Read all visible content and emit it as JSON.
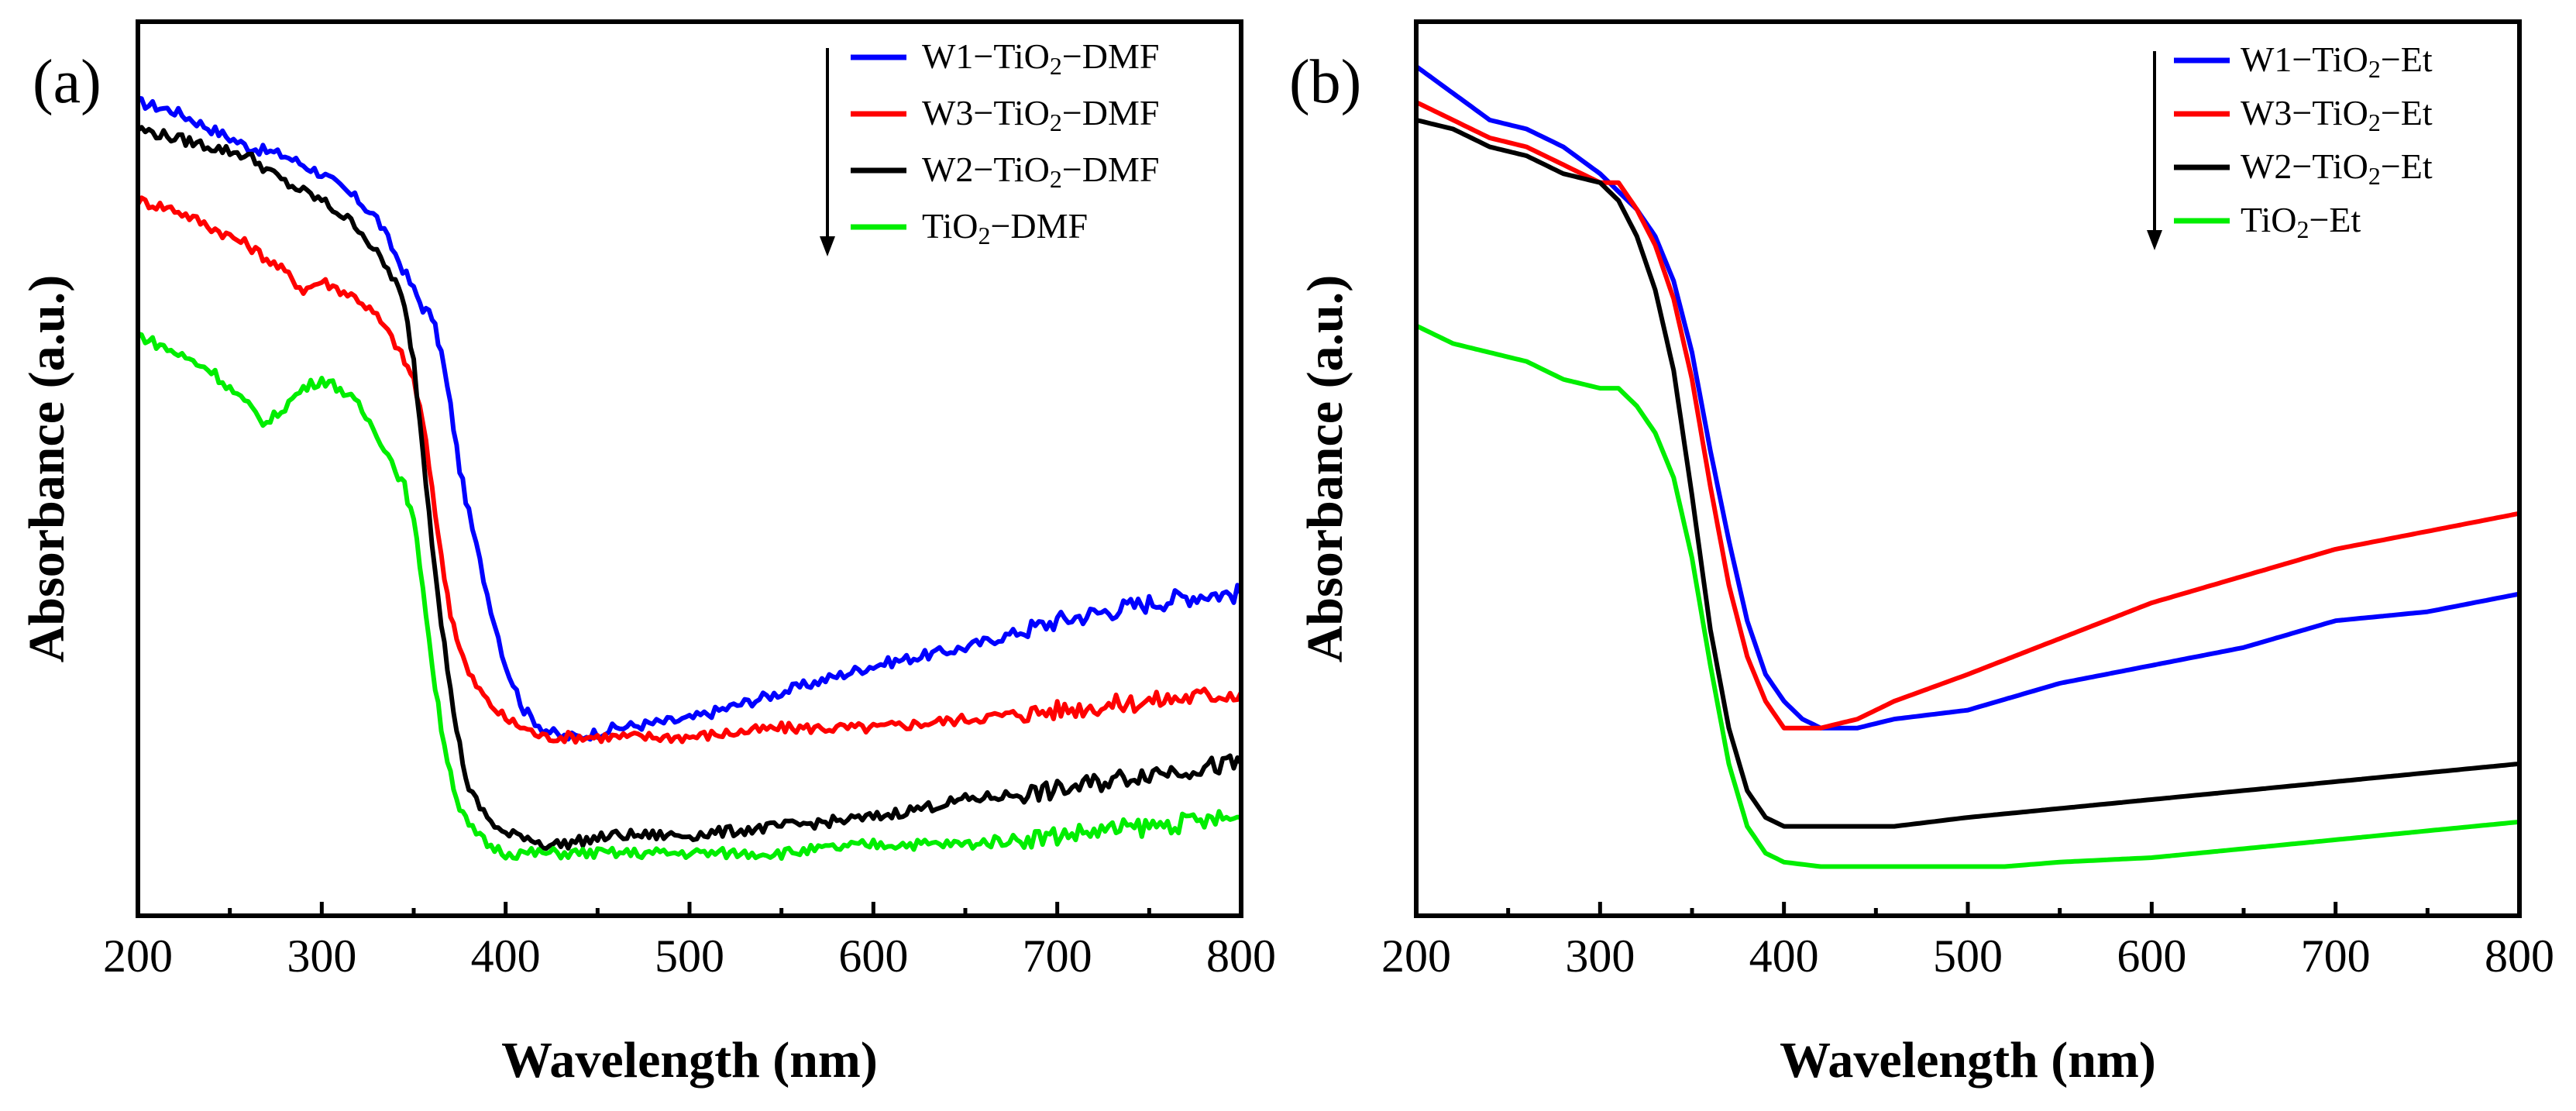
{
  "chart_data": [
    {
      "type": "line",
      "panel_label": "(a)",
      "xlabel": "Wavelength (nm)",
      "ylabel": "Absorbance (a.u.)",
      "xlim": [
        200,
        800
      ],
      "ylim": [
        0,
        1
      ],
      "xticks": [
        "200",
        "300",
        "400",
        "500",
        "600",
        "700",
        "800"
      ],
      "legend_position": "top-right",
      "legend_arrow": "down",
      "series": [
        {
          "name": "W1−TiO₂−DMF",
          "legend": {
            "pre": "W1−TiO",
            "sub": "2",
            "post": "−DMF"
          },
          "color": "#0000ff",
          "noise": 0.006,
          "x": [
            200,
            220,
            240,
            260,
            280,
            300,
            320,
            330,
            340,
            350,
            355,
            360,
            365,
            370,
            375,
            380,
            390,
            400,
            410,
            420,
            430,
            440,
            460,
            500,
            550,
            600,
            650,
            700,
            750,
            780,
            800
          ],
          "y": [
            0.91,
            0.9,
            0.88,
            0.86,
            0.85,
            0.83,
            0.8,
            0.78,
            0.74,
            0.7,
            0.68,
            0.67,
            0.63,
            0.57,
            0.5,
            0.45,
            0.36,
            0.28,
            0.23,
            0.21,
            0.2,
            0.2,
            0.21,
            0.22,
            0.25,
            0.28,
            0.3,
            0.33,
            0.35,
            0.36,
            0.36
          ]
        },
        {
          "name": "W3−TiO₂−DMF",
          "legend": {
            "pre": "W3−TiO",
            "sub": "2",
            "post": "−DMF"
          },
          "color": "#ff0000",
          "noise": 0.006,
          "x": [
            200,
            220,
            240,
            260,
            280,
            290,
            300,
            320,
            330,
            340,
            345,
            350,
            355,
            360,
            365,
            370,
            375,
            380,
            390,
            400,
            410,
            420,
            430,
            460,
            500,
            550,
            600,
            650,
            700,
            750,
            800
          ],
          "y": [
            0.8,
            0.79,
            0.77,
            0.75,
            0.72,
            0.7,
            0.71,
            0.69,
            0.67,
            0.64,
            0.62,
            0.6,
            0.55,
            0.48,
            0.4,
            0.34,
            0.3,
            0.27,
            0.24,
            0.22,
            0.21,
            0.2,
            0.2,
            0.2,
            0.2,
            0.21,
            0.21,
            0.22,
            0.23,
            0.24,
            0.25
          ]
        },
        {
          "name": "W2−TiO₂−DMF",
          "legend": {
            "pre": "W2−TiO",
            "sub": "2",
            "post": "−DMF"
          },
          "color": "#000000",
          "noise": 0.006,
          "x": [
            200,
            220,
            240,
            260,
            280,
            300,
            320,
            330,
            340,
            345,
            350,
            355,
            360,
            365,
            370,
            375,
            380,
            390,
            400,
            410,
            420,
            430,
            460,
            500,
            550,
            600,
            650,
            700,
            750,
            800
          ],
          "y": [
            0.88,
            0.87,
            0.86,
            0.85,
            0.82,
            0.8,
            0.77,
            0.74,
            0.71,
            0.68,
            0.62,
            0.52,
            0.42,
            0.33,
            0.25,
            0.19,
            0.14,
            0.11,
            0.09,
            0.09,
            0.08,
            0.08,
            0.09,
            0.09,
            0.1,
            0.11,
            0.13,
            0.14,
            0.16,
            0.17
          ]
        },
        {
          "name": "TiO₂−DMF",
          "legend": {
            "pre": "TiO",
            "sub": "2",
            "post": "−DMF"
          },
          "color": "#00ee00",
          "noise": 0.006,
          "x": [
            200,
            220,
            240,
            260,
            270,
            280,
            290,
            300,
            310,
            320,
            330,
            340,
            345,
            350,
            355,
            360,
            365,
            370,
            375,
            380,
            390,
            400,
            420,
            460,
            500,
            550,
            600,
            650,
            700,
            750,
            800
          ],
          "y": [
            0.65,
            0.63,
            0.61,
            0.57,
            0.55,
            0.57,
            0.59,
            0.6,
            0.59,
            0.57,
            0.54,
            0.5,
            0.48,
            0.44,
            0.37,
            0.28,
            0.21,
            0.16,
            0.12,
            0.1,
            0.08,
            0.07,
            0.07,
            0.07,
            0.07,
            0.07,
            0.08,
            0.08,
            0.09,
            0.1,
            0.11
          ]
        }
      ]
    },
    {
      "type": "line",
      "panel_label": "(b)",
      "xlabel": "Wavelength (nm)",
      "ylabel": "Absorbance (a.u.)",
      "xlim": [
        200,
        800
      ],
      "ylim": [
        0,
        1
      ],
      "xticks": [
        "200",
        "300",
        "400",
        "500",
        "600",
        "700",
        "800"
      ],
      "legend_position": "top-right",
      "legend_arrow": "down",
      "series": [
        {
          "name": "W1−TiO₂−Et",
          "legend": {
            "pre": "W1−TiO",
            "sub": "2",
            "post": "−Et"
          },
          "color": "#0000ff",
          "noise": 0,
          "x": [
            200,
            220,
            240,
            260,
            280,
            300,
            320,
            330,
            340,
            350,
            360,
            370,
            380,
            390,
            400,
            410,
            420,
            430,
            440,
            460,
            500,
            550,
            600,
            650,
            700,
            750,
            800
          ],
          "y": [
            0.95,
            0.92,
            0.89,
            0.88,
            0.86,
            0.83,
            0.79,
            0.76,
            0.71,
            0.63,
            0.52,
            0.42,
            0.33,
            0.27,
            0.24,
            0.22,
            0.21,
            0.21,
            0.21,
            0.22,
            0.23,
            0.26,
            0.28,
            0.3,
            0.33,
            0.34,
            0.36
          ]
        },
        {
          "name": "W3−TiO₂−Et",
          "legend": {
            "pre": "W3−TiO",
            "sub": "2",
            "post": "−Et"
          },
          "color": "#ff0000",
          "noise": 0,
          "x": [
            200,
            220,
            240,
            260,
            280,
            300,
            310,
            320,
            330,
            340,
            350,
            360,
            370,
            380,
            390,
            400,
            410,
            420,
            440,
            460,
            500,
            550,
            600,
            650,
            700,
            750,
            800
          ],
          "y": [
            0.91,
            0.89,
            0.87,
            0.86,
            0.84,
            0.82,
            0.82,
            0.79,
            0.75,
            0.69,
            0.6,
            0.48,
            0.37,
            0.29,
            0.24,
            0.21,
            0.21,
            0.21,
            0.22,
            0.24,
            0.27,
            0.31,
            0.35,
            0.38,
            0.41,
            0.43,
            0.45
          ]
        },
        {
          "name": "W2−TiO₂−Et",
          "legend": {
            "pre": "W2−TiO",
            "sub": "2",
            "post": "−Et"
          },
          "color": "#000000",
          "noise": 0,
          "x": [
            200,
            220,
            240,
            260,
            280,
            300,
            310,
            320,
            330,
            340,
            350,
            360,
            370,
            380,
            390,
            400,
            410,
            420,
            440,
            460,
            500,
            550,
            600,
            650,
            700,
            750,
            800
          ],
          "y": [
            0.89,
            0.88,
            0.86,
            0.85,
            0.83,
            0.82,
            0.8,
            0.76,
            0.7,
            0.61,
            0.47,
            0.32,
            0.21,
            0.14,
            0.11,
            0.1,
            0.1,
            0.1,
            0.1,
            0.1,
            0.11,
            0.12,
            0.13,
            0.14,
            0.15,
            0.16,
            0.17
          ]
        },
        {
          "name": "TiO₂−Et",
          "legend": {
            "pre": "TiO",
            "sub": "2",
            "post": "−Et"
          },
          "color": "#00ee00",
          "noise": 0,
          "x": [
            200,
            220,
            240,
            260,
            280,
            300,
            310,
            320,
            330,
            340,
            350,
            360,
            370,
            380,
            390,
            400,
            420,
            460,
            500,
            520,
            550,
            600,
            650,
            700,
            750,
            800
          ],
          "y": [
            0.66,
            0.64,
            0.63,
            0.62,
            0.6,
            0.59,
            0.59,
            0.57,
            0.54,
            0.49,
            0.4,
            0.28,
            0.17,
            0.1,
            0.07,
            0.06,
            0.055,
            0.055,
            0.055,
            0.055,
            0.06,
            0.065,
            0.075,
            0.085,
            0.095,
            0.105
          ]
        }
      ]
    }
  ]
}
